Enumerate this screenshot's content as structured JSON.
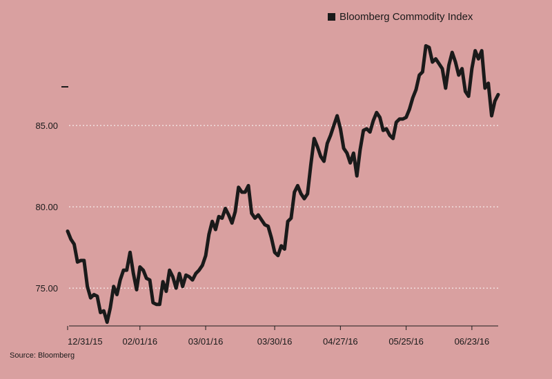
{
  "chart_data": {
    "type": "line",
    "title": "",
    "xlabel": "",
    "ylabel": "",
    "ylim": [
      72.8,
      90.6
    ],
    "yticks": [
      "75.00",
      "80.00",
      "85.00"
    ],
    "ytick_values": [
      75,
      80,
      85
    ],
    "xtick_labels": [
      "12/31/15",
      "02/01/16",
      "03/01/16",
      "03/30/16",
      "04/27/16",
      "05/25/16",
      "06/23/16"
    ],
    "xtick_index": [
      0,
      22,
      42,
      63,
      83,
      103,
      123
    ],
    "grid": "horizontal dotted",
    "legend_position": "top-right",
    "series": [
      {
        "name": "Bloomberg Commodity Index",
        "color": "#1a1a1a",
        "values": [
          78.5,
          78.0,
          77.7,
          76.6,
          76.7,
          76.7,
          75.1,
          74.4,
          74.6,
          74.5,
          73.5,
          73.6,
          72.9,
          73.8,
          75.1,
          74.6,
          75.5,
          76.1,
          76.1,
          77.2,
          75.9,
          74.9,
          76.3,
          76.1,
          75.6,
          75.5,
          74.1,
          74.0,
          74.0,
          75.4,
          74.8,
          76.1,
          75.7,
          75.0,
          75.9,
          75.1,
          75.8,
          75.7,
          75.5,
          75.9,
          76.1,
          76.4,
          77.0,
          78.3,
          79.1,
          78.6,
          79.4,
          79.3,
          79.9,
          79.5,
          79.0,
          79.7,
          81.2,
          80.9,
          80.9,
          81.3,
          79.6,
          79.3,
          79.5,
          79.2,
          78.9,
          78.8,
          78.1,
          77.2,
          77.0,
          77.6,
          77.4,
          79.1,
          79.3,
          80.9,
          81.3,
          80.8,
          80.5,
          80.8,
          82.6,
          84.2,
          83.7,
          83.1,
          82.8,
          83.9,
          84.4,
          85.0,
          85.6,
          84.8,
          83.6,
          83.3,
          82.7,
          83.3,
          81.9,
          83.5,
          84.7,
          84.8,
          84.6,
          85.3,
          85.8,
          85.5,
          84.7,
          84.8,
          84.4,
          84.2,
          85.2,
          85.4,
          85.4,
          85.5,
          86.0,
          86.7,
          87.2,
          88.1,
          88.3,
          89.9,
          89.8,
          88.9,
          89.1,
          88.8,
          88.5,
          87.3,
          88.7,
          89.5,
          88.9,
          88.1,
          88.5,
          87.1,
          86.8,
          88.5,
          89.6,
          89.1,
          89.6,
          87.3,
          87.6,
          85.6,
          86.5,
          86.9
        ]
      }
    ]
  },
  "source": "Source: Bloomberg"
}
